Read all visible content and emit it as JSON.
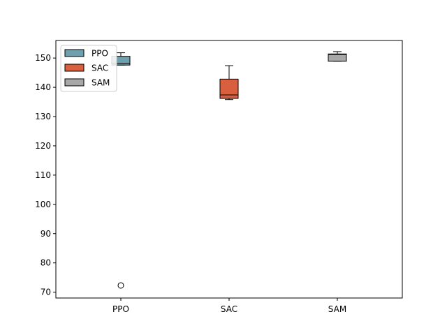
{
  "chart_data": {
    "type": "box",
    "title": "",
    "xlabel": "",
    "ylabel": "",
    "categories": [
      "PPO",
      "SAC",
      "SAM"
    ],
    "ylim": [
      68,
      156
    ],
    "yticks": [
      70,
      80,
      90,
      100,
      110,
      120,
      130,
      140,
      150
    ],
    "grid": false,
    "legend_position": "top-left",
    "legend": [
      {
        "label": "PPO",
        "color": "#6fa0ae"
      },
      {
        "label": "SAC",
        "color": "#d9603f"
      },
      {
        "label": "SAM",
        "color": "#a8a8a8"
      }
    ],
    "boxes": [
      {
        "name": "PPO",
        "color": "#6fa0ae",
        "whisker_low": 147.6,
        "q1": 147.6,
        "median": 148.2,
        "q3": 150.6,
        "whisker_high": 151.8,
        "outliers": [
          72.3
        ]
      },
      {
        "name": "SAC",
        "color": "#d9603f",
        "whisker_low": 135.8,
        "q1": 136.2,
        "median": 137.4,
        "q3": 142.8,
        "whisker_high": 147.4,
        "outliers": []
      },
      {
        "name": "SAM",
        "color": "#a8a8a8",
        "whisker_low": 148.9,
        "q1": 148.9,
        "median": 151.2,
        "q3": 151.4,
        "whisker_high": 152.2,
        "outliers": []
      }
    ]
  }
}
